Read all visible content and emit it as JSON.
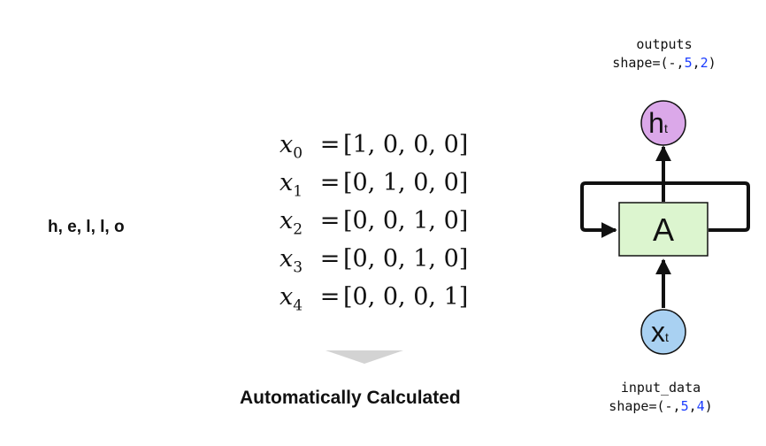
{
  "word": "h, e, l, l, o",
  "vectors": [
    {
      "var": "x",
      "index": "0",
      "eq": "=",
      "value": "[1, 0, 0, 0]"
    },
    {
      "var": "x",
      "index": "1",
      "eq": "=",
      "value": "[0, 1, 0, 0]"
    },
    {
      "var": "x",
      "index": "2",
      "eq": "=",
      "value": "[0, 0, 1, 0]"
    },
    {
      "var": "x",
      "index": "3",
      "eq": "=",
      "value": "[0, 0, 1, 0]"
    },
    {
      "var": "x",
      "index": "4",
      "eq": "=",
      "value": "[0, 0, 0, 1]"
    }
  ],
  "caption": "Automatically Calculated",
  "outputs": {
    "title": "outputs",
    "shape_prefix": "shape=(-,",
    "dim1": "5",
    "sep": ",",
    "dim2": "2",
    "shape_suffix": ")"
  },
  "input": {
    "title": "input_data",
    "shape_prefix": "shape=(-,",
    "dim1": "5",
    "sep": ",",
    "dim2": "4",
    "shape_suffix": ")"
  },
  "cell": {
    "label": "A",
    "hidden_main": "h",
    "hidden_sub": "t",
    "input_main": "x",
    "input_sub": "t"
  },
  "colors": {
    "cell_fill": "#dcf5cf",
    "hidden_fill": "#dba8e9",
    "input_fill": "#a9d1f2",
    "shape_highlight": "#1a3cff",
    "arrow_gray": "#d3d3d3"
  }
}
